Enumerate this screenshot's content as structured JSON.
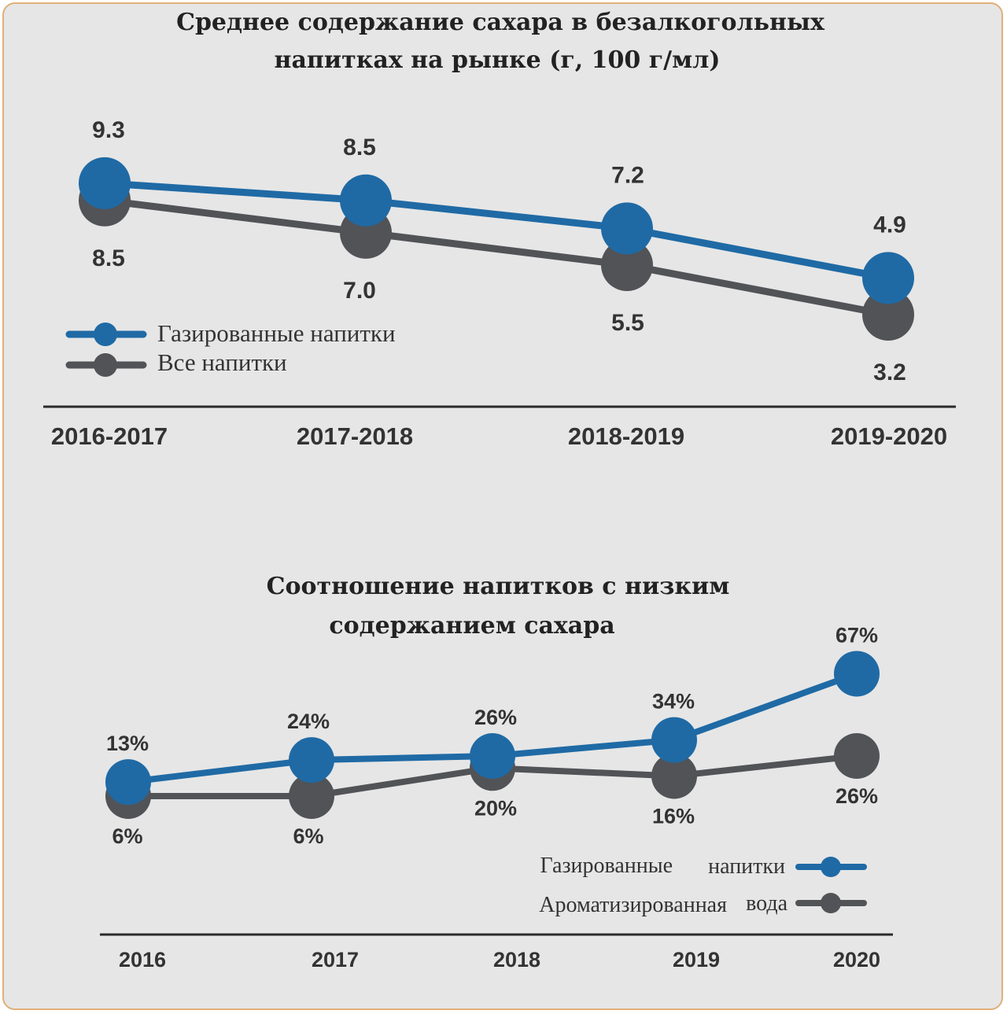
{
  "colors": {
    "blue": "#1f6aa5",
    "gray": "#515357",
    "accent_border": "#e0b07a",
    "background": "#e6e6e6"
  },
  "chart_data": [
    {
      "type": "line",
      "title": "Среднее содержание сахара в безалкогольных напитках на рынке (г, 100 г/мл)",
      "title_lines": [
        "Среднее содержание сахара в безалкогольных",
        "напитках на рынке (г, 100 г/мл)"
      ],
      "categories": [
        "2016-2017",
        "2017-2018",
        "2018-2019",
        "2019-2020"
      ],
      "series": [
        {
          "name": "Газированные напитки",
          "values": [
            9.3,
            8.5,
            7.2,
            4.9
          ],
          "labels": [
            "9.3",
            "8.5",
            "7.2",
            "4.9"
          ],
          "color": "blue"
        },
        {
          "name": "Все напитки",
          "values": [
            8.5,
            7.0,
            5.5,
            3.2
          ],
          "labels": [
            "8.5",
            "7.0",
            "5.5",
            "3.2"
          ],
          "color": "gray"
        }
      ],
      "legend_position": "bottom-left",
      "grid": false
    },
    {
      "type": "line",
      "title": "Соотношение напитков с низким содержанием сахара",
      "title_lines": [
        "Соотношение напитков с низким",
        "содержанием сахара"
      ],
      "categories": [
        "2016",
        "2017",
        "2018",
        "2019",
        "2020"
      ],
      "series": [
        {
          "name": "Газированные напитки",
          "legend_parts": [
            "Газированные",
            "напитки"
          ],
          "values": [
            13,
            24,
            26,
            34,
            67
          ],
          "labels": [
            "13%",
            "24%",
            "26%",
            "34%",
            "67%"
          ],
          "color": "blue"
        },
        {
          "name": "Ароматизированная вода",
          "legend_parts": [
            "Ароматизированная",
            "вода"
          ],
          "values": [
            6,
            6,
            20,
            16,
            26
          ],
          "labels": [
            "6%",
            "6%",
            "20%",
            "16%",
            "26%"
          ],
          "color": "gray"
        }
      ],
      "legend_position": "bottom-right",
      "grid": false
    }
  ]
}
